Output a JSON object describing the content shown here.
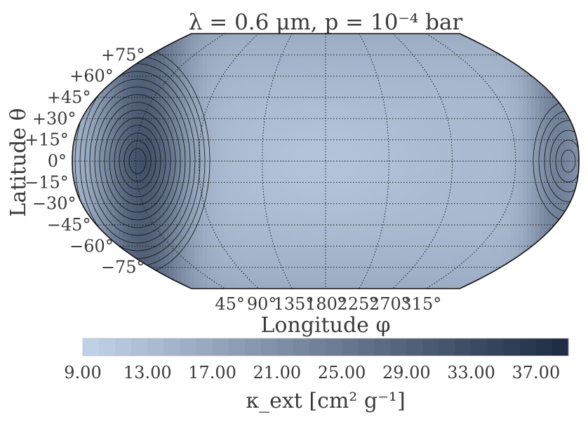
{
  "title": "λ = 0.6 μm, p = 10⁻⁴ bar",
  "xlabel": "Longitude φ",
  "ylabel": "Latitude θ",
  "lat_ticks": [
    "+75°",
    "+60°",
    "+45°",
    "+30°",
    "+15°",
    "0°",
    "−15°",
    "−30°",
    "−45°",
    "−60°",
    "−75°"
  ],
  "lon_ticks": [
    "45°",
    "90°",
    "135°",
    "180°",
    "225°",
    "270°",
    "315°"
  ],
  "colorbar": {
    "label": "κ_ext [cm² g⁻¹]",
    "ticks": [
      "9.00",
      "13.00",
      "17.00",
      "21.00",
      "25.00",
      "29.00",
      "33.00",
      "37.00"
    ],
    "min": 9.0,
    "max": 39.0,
    "low_color": "#c2d3ea",
    "high_color": "#1c2a42"
  },
  "chart_data": {
    "type": "heatmap",
    "projection": "robinson",
    "variable": "kappa_ext",
    "value_range": [
      9.0,
      39.0
    ],
    "lon_lines": [
      0,
      45,
      90,
      135,
      180,
      225,
      270,
      315,
      360
    ],
    "lat_lines": [
      -75,
      -60,
      -45,
      -30,
      -15,
      0,
      15,
      30,
      45,
      60,
      75
    ]
  }
}
